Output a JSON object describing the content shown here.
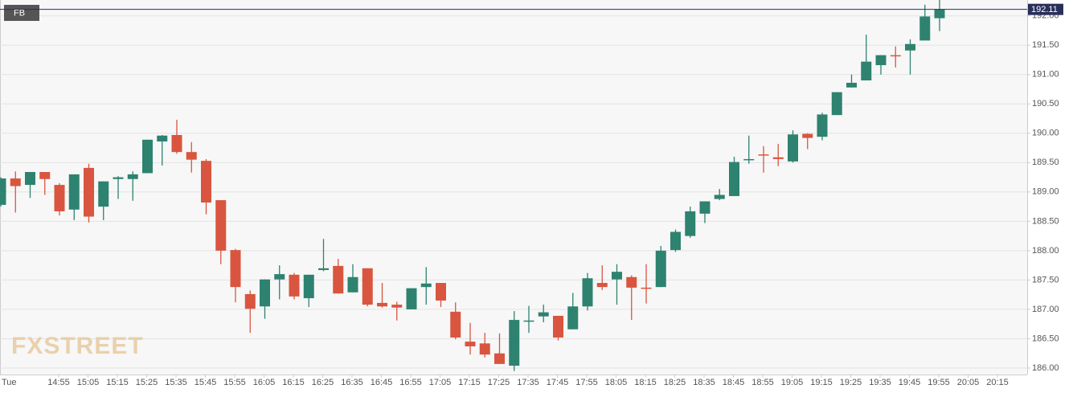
{
  "chart_data": {
    "type": "candlestick",
    "symbol": "FB",
    "watermark": "FXSTREET",
    "up_color": "#2e8270",
    "down_color": "#d9553f",
    "grid": true,
    "y_axis_side": "right",
    "ylim": [
      185.89,
      192.27
    ],
    "yticks": [
      {
        "value": 186,
        "label": "186.00"
      },
      {
        "value": 186.5,
        "label": "186.50"
      },
      {
        "value": 187,
        "label": "187.00"
      },
      {
        "value": 187.5,
        "label": "187.50"
      },
      {
        "value": 188,
        "label": "188.00"
      },
      {
        "value": 188.5,
        "label": "188.50"
      },
      {
        "value": 189,
        "label": "189.00"
      },
      {
        "value": 189.5,
        "label": "189.50"
      },
      {
        "value": 190,
        "label": "190.00"
      },
      {
        "value": 190.5,
        "label": "190.50"
      },
      {
        "value": 191,
        "label": "191.00"
      },
      {
        "value": 191.5,
        "label": "191.50"
      },
      {
        "value": 192,
        "label": "192.00"
      }
    ],
    "x_labels": [
      "Tue",
      "14:55",
      "15:05",
      "15:15",
      "15:25",
      "15:35",
      "15:45",
      "15:55",
      "16:05",
      "16:15",
      "16:25",
      "16:35",
      "16:45",
      "16:55",
      "17:05",
      "17:15",
      "17:25",
      "17:35",
      "17:45",
      "17:55",
      "18:05",
      "18:15",
      "18:25",
      "18:35",
      "18:45",
      "18:55",
      "19:05",
      "19:15",
      "19:25",
      "19:35",
      "19:45",
      "19:55",
      "20:05",
      "20:15"
    ],
    "last_price": 192.11,
    "ohlc": [
      [
        188.78,
        189.25,
        188.75,
        189.23
      ],
      [
        189.23,
        189.35,
        188.65,
        189.1
      ],
      [
        189.12,
        189.34,
        188.9,
        189.34
      ],
      [
        189.34,
        189.34,
        188.95,
        189.22
      ],
      [
        189.12,
        189.15,
        188.6,
        188.67
      ],
      [
        188.7,
        189.3,
        188.52,
        189.3
      ],
      [
        189.41,
        189.48,
        188.48,
        188.58
      ],
      [
        188.75,
        189.18,
        188.52,
        189.18
      ],
      [
        189.22,
        189.27,
        188.88,
        189.25
      ],
      [
        189.22,
        189.35,
        188.85,
        189.3
      ],
      [
        189.32,
        189.89,
        189.32,
        189.89
      ],
      [
        189.86,
        189.97,
        189.45,
        189.96
      ],
      [
        189.97,
        190.23,
        189.65,
        189.68
      ],
      [
        189.68,
        189.85,
        189.33,
        189.55
      ],
      [
        189.53,
        189.56,
        188.62,
        188.82
      ],
      [
        188.86,
        188.86,
        187.77,
        188.0
      ],
      [
        188.01,
        188.03,
        187.12,
        187.38
      ],
      [
        187.26,
        187.32,
        186.6,
        187.01
      ],
      [
        187.05,
        187.51,
        186.84,
        187.51
      ],
      [
        187.51,
        187.75,
        187.17,
        187.6
      ],
      [
        187.59,
        187.62,
        187.17,
        187.22
      ],
      [
        187.19,
        187.59,
        187.04,
        187.59
      ],
      [
        187.67,
        188.2,
        187.65,
        187.7
      ],
      [
        187.74,
        187.86,
        187.27,
        187.27
      ],
      [
        187.29,
        187.77,
        187.29,
        187.55
      ],
      [
        187.7,
        187.7,
        187.05,
        187.08
      ],
      [
        187.11,
        187.45,
        187.03,
        187.05
      ],
      [
        187.08,
        187.13,
        186.81,
        187.03
      ],
      [
        187.0,
        187.36,
        187.0,
        187.36
      ],
      [
        187.38,
        187.72,
        187.08,
        187.44
      ],
      [
        187.45,
        187.45,
        187.04,
        187.15
      ],
      [
        186.96,
        187.12,
        186.49,
        186.52
      ],
      [
        186.45,
        186.77,
        186.23,
        186.37
      ],
      [
        186.42,
        186.6,
        186.18,
        186.23
      ],
      [
        186.25,
        186.59,
        186.07,
        186.07
      ],
      [
        186.04,
        186.97,
        185.95,
        186.82
      ],
      [
        186.79,
        187.06,
        186.6,
        186.81
      ],
      [
        186.88,
        187.08,
        186.78,
        186.95
      ],
      [
        186.89,
        186.89,
        186.47,
        186.52
      ],
      [
        186.66,
        187.28,
        186.66,
        187.05
      ],
      [
        187.05,
        187.62,
        186.98,
        187.53
      ],
      [
        187.45,
        187.75,
        187.33,
        187.38
      ],
      [
        187.51,
        187.77,
        187.08,
        187.64
      ],
      [
        187.55,
        187.58,
        186.82,
        187.37
      ],
      [
        187.37,
        187.77,
        187.1,
        187.36
      ],
      [
        187.38,
        188.08,
        187.38,
        188.0
      ],
      [
        188.01,
        188.36,
        187.98,
        188.32
      ],
      [
        188.25,
        188.75,
        188.22,
        188.67
      ],
      [
        188.63,
        188.84,
        188.47,
        188.84
      ],
      [
        188.88,
        189.05,
        188.86,
        188.95
      ],
      [
        188.93,
        189.6,
        188.93,
        189.51
      ],
      [
        189.55,
        189.96,
        189.48,
        189.56
      ],
      [
        189.64,
        189.78,
        189.33,
        189.62
      ],
      [
        189.59,
        189.82,
        189.44,
        189.56
      ],
      [
        189.52,
        190.05,
        189.5,
        189.98
      ],
      [
        189.99,
        190.0,
        189.73,
        189.92
      ],
      [
        189.94,
        190.35,
        189.88,
        190.32
      ],
      [
        190.31,
        190.7,
        190.31,
        190.7
      ],
      [
        190.78,
        191.0,
        190.78,
        190.86
      ],
      [
        190.9,
        191.68,
        190.9,
        191.22
      ],
      [
        191.16,
        191.33,
        191.0,
        191.33
      ],
      [
        191.33,
        191.48,
        191.12,
        191.31
      ],
      [
        191.41,
        191.6,
        191.0,
        191.52
      ],
      [
        191.58,
        192.19,
        191.58,
        191.99
      ],
      [
        191.96,
        192.28,
        191.74,
        192.11
      ]
    ]
  }
}
